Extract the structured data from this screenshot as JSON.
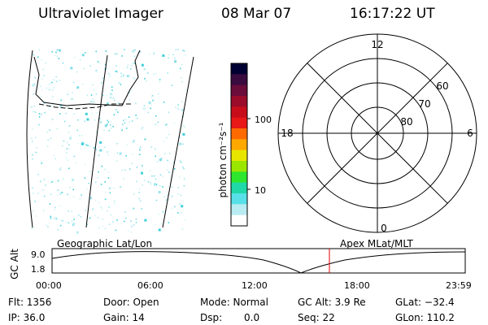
{
  "header": {
    "title": "Ultraviolet Imager",
    "date": "08 Mar 07",
    "time": "16:17:22 UT"
  },
  "colorbar": {
    "unit_label": "photon cm⁻²s⁻¹",
    "ticks": [
      "100",
      "10"
    ],
    "colors": [
      "#000033",
      "#3a0b3f",
      "#6a0d3a",
      "#9a0c2a",
      "#c80d1a",
      "#e81818",
      "#ff6a00",
      "#ffa800",
      "#e8e600",
      "#9be600",
      "#2ee62e",
      "#20d8a8",
      "#58e0e8",
      "#b8ecf2",
      "#ffffff"
    ]
  },
  "polar_plot": {
    "mlt_labels": {
      "top": "12",
      "left": "18",
      "right": "6",
      "bottom": "0"
    },
    "lat_labels": [
      "60",
      "70",
      "80"
    ]
  },
  "timeline": {
    "y_axis_label": "GC Alt",
    "y_ticks": [
      "9.0",
      "1.8"
    ],
    "left_label": "Geographic Lat/Lon",
    "right_label": "Apex MLat/MLT",
    "x_ticks": [
      "00:00",
      "06:00",
      "12:00",
      "18:00",
      "23:59"
    ],
    "current_marker_color": "#e00000"
  },
  "info": {
    "flt": "Flt: 1356",
    "ip": "IP: 36.0",
    "door": "Door: Open",
    "gain": "Gain: 14",
    "mode": "Mode: Normal",
    "dsp": "Dsp:",
    "dsp_val": "0.0",
    "gc_alt": "GC Alt: 3.9 Re",
    "seq": "Seq: 22",
    "glat": "GLat: −32.4",
    "glon": "GLon: 110.2"
  }
}
